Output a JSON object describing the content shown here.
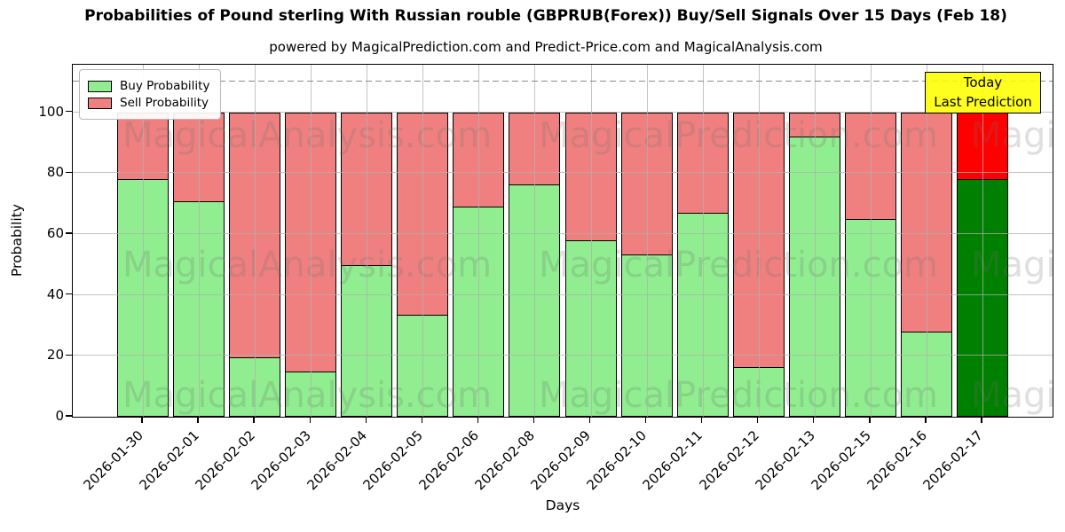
{
  "header": {
    "title": "Probabilities of Pound sterling With Russian rouble (GBPRUB(Forex)) Buy/Sell Signals Over 15 Days (Feb 18)",
    "subtitle": "powered by MagicalPrediction.com and Predict-Price.com and MagicalAnalysis.com"
  },
  "legend": {
    "items": [
      {
        "label": "Buy Probability",
        "color": "#90EE90"
      },
      {
        "label": "Sell Probability",
        "color": "#F08080"
      }
    ]
  },
  "today_box": {
    "line1": "Today",
    "line2": "Last Prediction",
    "bg_color": "#FFFF00"
  },
  "chart_data": {
    "type": "bar",
    "stacked": true,
    "title": "Probabilities of Pound sterling With Russian rouble (GBPRUB(Forex)) Buy/Sell Signals Over 15 Days (Feb 18)",
    "subtitle": "powered by MagicalPrediction.com and Predict-Price.com and MagicalAnalysis.com",
    "xlabel": "Days",
    "ylabel": "Probability",
    "ylim": [
      0,
      115.7
    ],
    "yticks": [
      0,
      20,
      40,
      60,
      80,
      100
    ],
    "grid": true,
    "dashed_reference_line_y": 110,
    "legend_position": "upper left",
    "categories": [
      "2026-01-30",
      "2026-02-01",
      "2026-02-02",
      "2026-02-03",
      "2026-02-04",
      "2026-02-05",
      "2026-02-06",
      "2026-02-08",
      "2026-02-09",
      "2026-02-10",
      "2026-02-11",
      "2026-02-12",
      "2026-02-13",
      "2026-02-15",
      "2026-02-16",
      "2026-02-17"
    ],
    "series": [
      {
        "name": "Buy Probability",
        "color": "#90EE90",
        "values": [
          78,
          71,
          19.5,
          15,
          50,
          33.5,
          69,
          76.5,
          58,
          53.5,
          67,
          16.5,
          92,
          65,
          28,
          78
        ]
      },
      {
        "name": "Sell Probability",
        "color": "#F08080",
        "values": [
          22,
          29,
          80.5,
          85,
          50,
          66.5,
          31,
          23.5,
          42,
          46.5,
          33,
          83.5,
          8,
          35,
          72,
          22
        ]
      }
    ],
    "today_bar": {
      "category": "2026-02-17",
      "buy_color": "#008000",
      "sell_color": "#FF0000"
    },
    "watermarks": [
      "MagicalAnalysis.com",
      "MagicalPrediction.com"
    ]
  }
}
